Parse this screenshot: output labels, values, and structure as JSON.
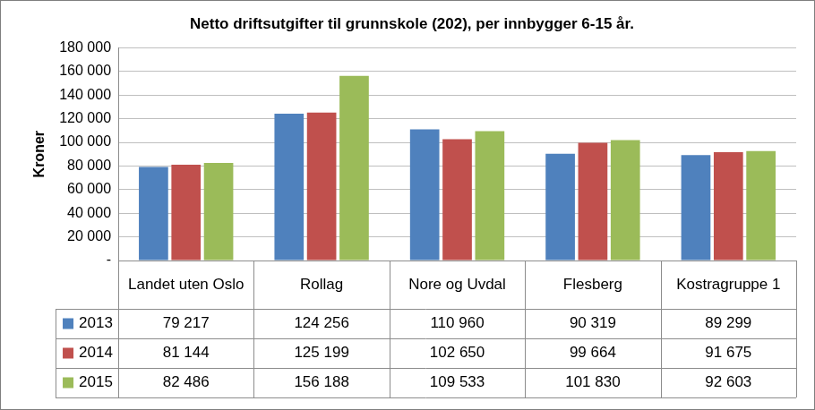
{
  "chart_data": {
    "type": "bar",
    "title": "Netto driftsutgifter til grunnskole (202), per innbygger 6-15 år.",
    "y_label": "Kroner",
    "categories": [
      "Landet uten Oslo",
      "Rollag",
      "Nore og Uvdal",
      "Flesberg",
      "Kostragruppe 1"
    ],
    "series": [
      {
        "name": "2013",
        "color": "#4f81bd",
        "values": [
          79217,
          124256,
          110960,
          90319,
          89299
        ],
        "value_labels": [
          "79 217",
          "124 256",
          "110 960",
          "90 319",
          "89 299"
        ]
      },
      {
        "name": "2014",
        "color": "#c0504d",
        "values": [
          81144,
          125199,
          102650,
          99664,
          91675
        ],
        "value_labels": [
          "81 144",
          "125 199",
          "102 650",
          "99 664",
          "91 675"
        ]
      },
      {
        "name": "2015",
        "color": "#9bbb59",
        "values": [
          82486,
          156188,
          109533,
          101830,
          92603
        ],
        "value_labels": [
          "82 486",
          "156 188",
          "109 533",
          "101 830",
          "92 603"
        ]
      }
    ],
    "ylim": [
      0,
      180000
    ],
    "yticks": [
      {
        "value": 0,
        "label": "-"
      },
      {
        "value": 20000,
        "label": "20 000"
      },
      {
        "value": 40000,
        "label": "40 000"
      },
      {
        "value": 60000,
        "label": "60 000"
      },
      {
        "value": 80000,
        "label": "80 000"
      },
      {
        "value": 100000,
        "label": "100 000"
      },
      {
        "value": 120000,
        "label": "120 000"
      },
      {
        "value": 140000,
        "label": "140 000"
      },
      {
        "value": 160000,
        "label": "160 000"
      },
      {
        "value": 180000,
        "label": "180 000"
      }
    ],
    "grid": true
  }
}
